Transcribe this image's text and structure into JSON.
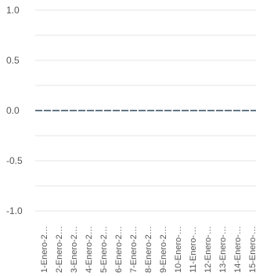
{
  "chart_data": {
    "type": "line",
    "categories": [
      "1-Enero-2…",
      "2-Enero-2…",
      "3-Enero-2…",
      "4-Enero-2…",
      "5-Enero-2…",
      "6-Enero-2…",
      "7-Enero-2…",
      "8-Enero-2…",
      "9-Enero-2…",
      "10-Enero-…",
      "11-Enero-…",
      "12-Enero-…",
      "13-Enero-…",
      "14-Enero-…",
      "15-Enero-…"
    ],
    "series": [
      {
        "values": [
          0,
          0,
          0,
          0,
          0,
          0,
          0,
          0,
          0,
          0,
          0,
          0,
          0,
          0,
          0
        ],
        "color": "#2e4a5c"
      }
    ],
    "y_ticks": [
      "1.0",
      "0.5",
      "0.0",
      "-0.5",
      "-1.0"
    ],
    "y_tick_values": [
      1.0,
      0.5,
      0.0,
      -0.5,
      -1.0
    ],
    "ylim": [
      -1.0,
      1.0
    ],
    "grid": true,
    "gridline_color": "#e6e6e6",
    "zero_line_color": "#2e4a5c"
  }
}
